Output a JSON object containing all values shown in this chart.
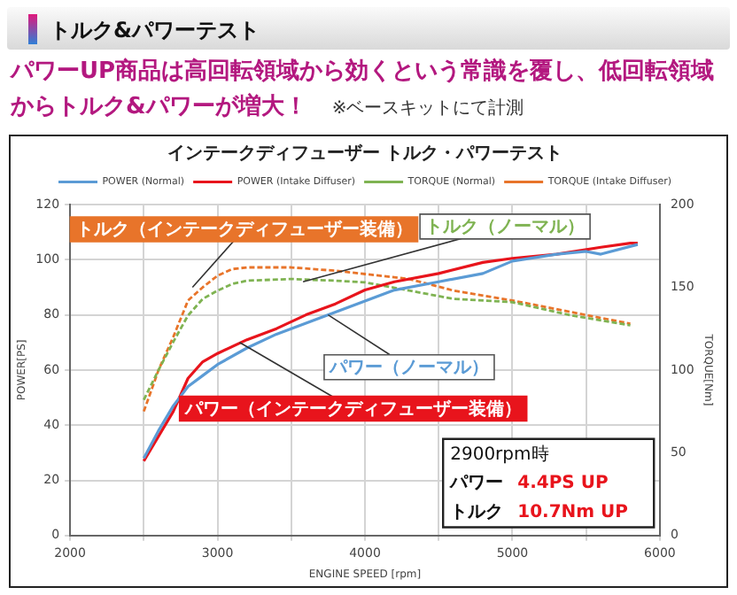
{
  "chart_data": {
    "type": "line",
    "title": "インテークディフューザー トルク・パワーテスト",
    "subtitle": "パワーUP商品は高回転領域から効くという常識を覆し、低回転領域からトルク&パワーが増大！",
    "xlabel": "ENGINE SPEED [rpm]",
    "ylabel": "POWER[PS]",
    "y2label": "TORQUE[Nm]",
    "annotations": [
      "トルク&パワーテスト",
      "※ベースキットにて計測",
      {
        "text": "トルク（インテークディフューザー装備）",
        "x": 2830,
        "y": 90
      },
      {
        "text": "トルク（ノーマル）",
        "x": 3580,
        "y": 92
      },
      {
        "text": "パワー（ノーマル）",
        "x": 3750,
        "y": 80
      },
      {
        "text": "パワー（インテークディフューザー装備）",
        "x": 3150,
        "y": 70
      },
      "2900rpm時",
      "パワー",
      "4.4PS UP",
      "トルク",
      "10.7Nm UP"
    ],
    "xlim": [
      2000,
      6000
    ],
    "xticks": [
      2000,
      {
        "value": 2500,
        "label": null
      },
      3000,
      {
        "value": 3500,
        "label": null
      },
      4000,
      {
        "value": 4500,
        "label": null
      },
      5000,
      {
        "value": 5500,
        "label": null
      },
      6000
    ],
    "ylim": [
      0,
      120
    ],
    "yticks": [
      0,
      20,
      40,
      60,
      80,
      100,
      120
    ],
    "y2lim": [
      0,
      200
    ],
    "y2ticks": [
      0,
      50,
      100,
      150,
      200
    ],
    "grid": true,
    "legend": "top",
    "marker": "none",
    "series": [
      {
        "name": "POWER (Normal)",
        "color": "#5b9bd5",
        "line_style": "solid",
        "x": [
          2500,
          2600,
          2700,
          2800,
          2900,
          3000,
          3200,
          3400,
          3600,
          3800,
          4000,
          4200,
          4500,
          4800,
          5000,
          5300,
          5500,
          5600,
          5850
        ],
        "values": [
          28,
          38,
          47,
          54,
          58,
          62,
          68,
          73,
          77,
          81,
          85,
          89,
          92,
          95,
          99.5,
          102,
          103,
          102,
          105.5
        ]
      },
      {
        "name": "POWER (Intake Diffuser)",
        "color": "#e8141c",
        "line_style": "solid",
        "x": [
          2500,
          2600,
          2700,
          2800,
          2900,
          3000,
          3200,
          3400,
          3600,
          3800,
          4000,
          4200,
          4500,
          4800,
          5000,
          5300,
          5600,
          5800,
          5850
        ],
        "values": [
          27,
          36,
          45,
          57,
          63,
          66,
          71,
          75,
          80,
          84,
          89,
          92,
          95,
          99,
          100.5,
          102,
          104.5,
          106,
          106
        ]
      },
      {
        "name": "TORQUE (Normal)",
        "color": "#7fb352",
        "line_style": "dashed",
        "axis": "y2",
        "x": [
          2500,
          2600,
          2700,
          2800,
          2900,
          3000,
          3100,
          3200,
          3500,
          3800,
          4000,
          4300,
          4600,
          5000,
          5400,
          5800
        ],
        "values": [
          82,
          100,
          117,
          133,
          143,
          148,
          152,
          154,
          155,
          154,
          153,
          148,
          143,
          141,
          133,
          127
        ]
      },
      {
        "name": "TORQUE (Intake Diffuser)",
        "color": "#e8742a",
        "line_style": "dashed",
        "axis": "y2",
        "x": [
          2500,
          2600,
          2700,
          2800,
          2900,
          3000,
          3100,
          3200,
          3500,
          3800,
          4000,
          4300,
          4600,
          5000,
          5400,
          5800
        ],
        "values": [
          75,
          100,
          120,
          142,
          150,
          157,
          161,
          162,
          162,
          160,
          158,
          155,
          148,
          142,
          135,
          128
        ]
      }
    ]
  }
}
